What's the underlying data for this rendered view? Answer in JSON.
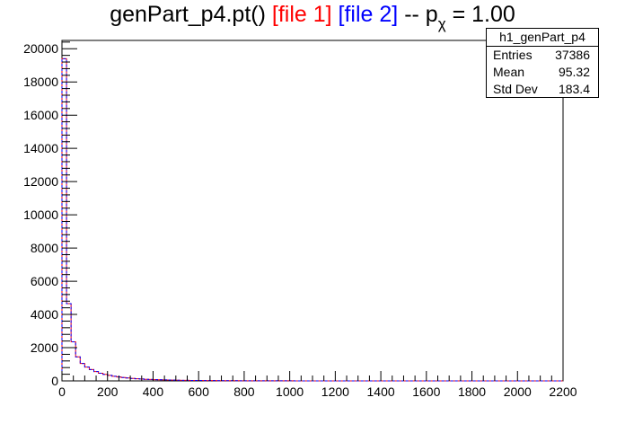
{
  "title": {
    "main": "genPart_p4.pt()",
    "file1": "[file 1]",
    "file2": "[file 2]",
    "sep": "--",
    "p": "p",
    "p_sub": "χ",
    "eq": "= 1.00"
  },
  "stats": {
    "name": "h1_genPart_p4",
    "rows": [
      {
        "key": "Entries",
        "value": "37386"
      },
      {
        "key": "Mean",
        "value": "95.32"
      },
      {
        "key": "Std Dev",
        "value": "183.4"
      }
    ]
  },
  "colors": {
    "file1": "#ff0000",
    "file2": "#0000ff",
    "axis": "#000000"
  },
  "chart_data": {
    "type": "histogram",
    "title": "genPart_p4.pt() [file 1] [file 2] -- p_χ = 1.00",
    "xlim": [
      0,
      2200
    ],
    "ylim": [
      0,
      20500
    ],
    "xticks": [
      0,
      200,
      400,
      600,
      800,
      1000,
      1200,
      1400,
      1600,
      1800,
      2000,
      2200
    ],
    "yticks": [
      0,
      2000,
      4000,
      6000,
      8000,
      10000,
      12000,
      14000,
      16000,
      18000,
      20000
    ],
    "bin_width": 20,
    "grid": false,
    "series": [
      {
        "name": "[file 1]",
        "color": "#ff0000",
        "values": [
          19400,
          4650,
          2350,
          1450,
          1050,
          830,
          680,
          560,
          460,
          390,
          330,
          280,
          240,
          205,
          175,
          150,
          130,
          112,
          98,
          86,
          75,
          66,
          58,
          52,
          46,
          41,
          37,
          33,
          30,
          27,
          24,
          22,
          20,
          18,
          16,
          15,
          13,
          12,
          11,
          10,
          9,
          8,
          8,
          7,
          6,
          6,
          5,
          5,
          4,
          4,
          4,
          3,
          3,
          3,
          3,
          2,
          2,
          2,
          2,
          2,
          2,
          1,
          1,
          1,
          1,
          1,
          1,
          1,
          1,
          1,
          1,
          1,
          1,
          1,
          1,
          1,
          1,
          1,
          1,
          1,
          0,
          0,
          0,
          0,
          0,
          0,
          0,
          0,
          0,
          0,
          0,
          0,
          0,
          0,
          0,
          0,
          0,
          0,
          0,
          0,
          0,
          0,
          0,
          0,
          0,
          0,
          0,
          0,
          0,
          0
        ]
      },
      {
        "name": "[file 2]",
        "color": "#0000ff",
        "values": [
          19400,
          4650,
          2350,
          1450,
          1050,
          830,
          680,
          560,
          460,
          390,
          330,
          280,
          240,
          205,
          175,
          150,
          130,
          112,
          98,
          86,
          75,
          66,
          58,
          52,
          46,
          41,
          37,
          33,
          30,
          27,
          24,
          22,
          20,
          18,
          16,
          15,
          13,
          12,
          11,
          10,
          9,
          8,
          8,
          7,
          6,
          6,
          5,
          5,
          4,
          4,
          4,
          3,
          3,
          3,
          3,
          2,
          2,
          2,
          2,
          2,
          2,
          1,
          1,
          1,
          1,
          1,
          1,
          1,
          1,
          1,
          1,
          1,
          1,
          1,
          1,
          1,
          1,
          1,
          1,
          1,
          0,
          0,
          0,
          0,
          0,
          0,
          0,
          0,
          0,
          0,
          0,
          0,
          0,
          0,
          0,
          0,
          0,
          0,
          0,
          0,
          0,
          0,
          0,
          0,
          0,
          0,
          0,
          0,
          0,
          0
        ]
      }
    ]
  }
}
